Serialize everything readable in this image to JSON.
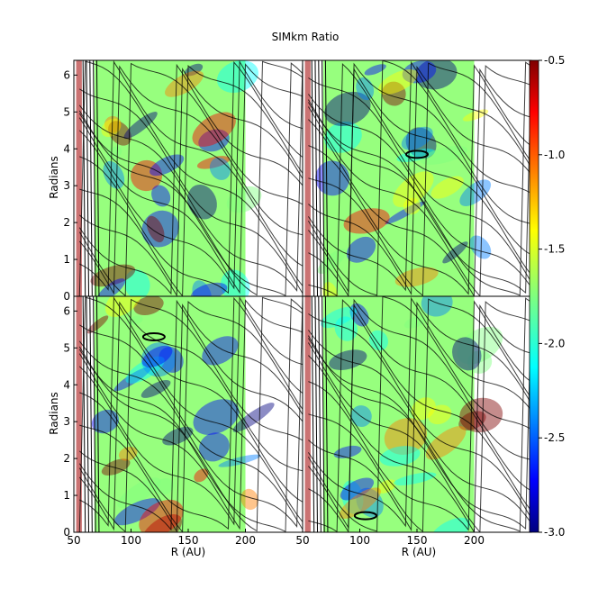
{
  "chart_data": {
    "type": "heatmap",
    "title": "SIMkm Ratio",
    "xlabel": "R (AU)",
    "ylabel": "Radians",
    "xlim": [
      50,
      250
    ],
    "ylim": [
      0,
      6.4
    ],
    "x_ticks": [
      {
        "value": 50,
        "label": "50"
      },
      {
        "value": 100,
        "label": "100"
      },
      {
        "value": 150,
        "label": "150"
      },
      {
        "value": 200,
        "label": "200"
      }
    ],
    "y_ticks": [
      {
        "value": 0,
        "label": "0"
      },
      {
        "value": 1,
        "label": "1"
      },
      {
        "value": 2,
        "label": "2"
      },
      {
        "value": 3,
        "label": "3"
      },
      {
        "value": 4,
        "label": "4"
      },
      {
        "value": 5,
        "label": "5"
      },
      {
        "value": 6,
        "label": "6"
      }
    ],
    "colorbar": {
      "range": [
        -3.0,
        -0.5
      ],
      "ticks": [
        {
          "value": -0.5,
          "label": "-0.5"
        },
        {
          "value": -1.0,
          "label": "-1.0"
        },
        {
          "value": -1.5,
          "label": "-1.5"
        },
        {
          "value": -2.0,
          "label": "-2.0"
        },
        {
          "value": -2.5,
          "label": "-2.5"
        },
        {
          "value": -3.0,
          "label": "-3.0"
        }
      ],
      "colors": [
        "#00007f",
        "#0000ff",
        "#007fff",
        "#00ffff",
        "#7fff7f",
        "#ffff00",
        "#ff7f00",
        "#ff0000",
        "#7f0000"
      ]
    },
    "contour_color": "#000000",
    "panels": [
      {
        "position": "top-left",
        "planet": null
      },
      {
        "position": "top-right",
        "planet": {
          "r": 150,
          "theta": 3.85
        }
      },
      {
        "position": "bottom-left",
        "planet": {
          "r": 120,
          "theta": 5.3
        }
      },
      {
        "position": "bottom-right",
        "planet": {
          "r": 105,
          "theta": 0.45
        }
      }
    ]
  }
}
